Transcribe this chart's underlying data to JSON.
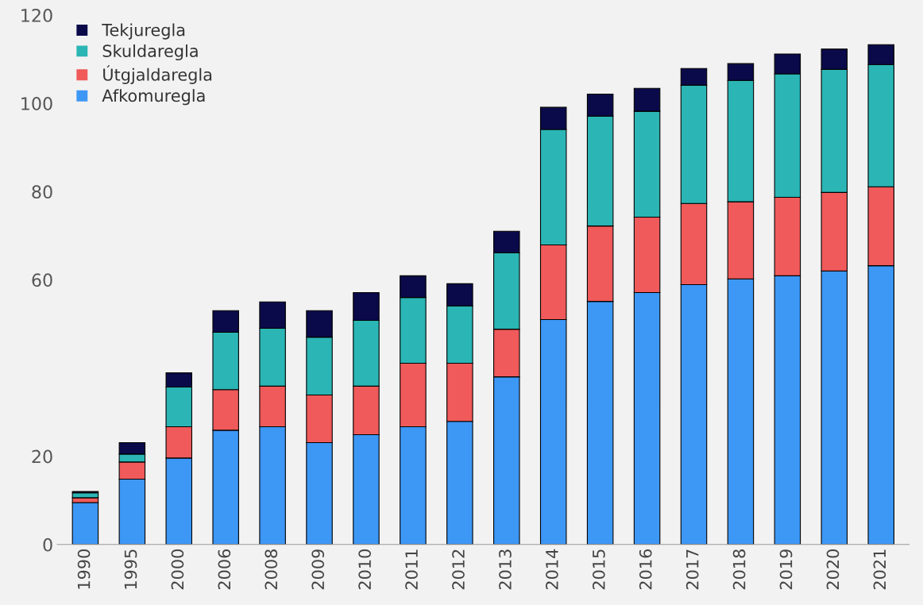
{
  "chart_data": {
    "type": "bar",
    "stacked": true,
    "legend": "top left",
    "grid": false,
    "categories": [
      "1990",
      "1995",
      "2000",
      "2006",
      "2008",
      "2009",
      "2010",
      "2011",
      "2012",
      "2013",
      "2014",
      "2015",
      "2016",
      "2017",
      "2018",
      "2019",
      "2020",
      "2021"
    ],
    "ylim": [
      0,
      120
    ],
    "yticks": [
      0,
      20,
      60,
      80,
      100,
      120
    ],
    "series": [
      {
        "name": "Afkomuregla",
        "color": "#3d97f5",
        "values": [
          9.5,
          14.8,
          19.6,
          25.9,
          26.7,
          23.1,
          24.9,
          26.7,
          27.9,
          38.0,
          51.0,
          55.1,
          57.1,
          58.9,
          60.2,
          60.9,
          62.0,
          63.2
        ]
      },
      {
        "name": "Útgjaldaregla",
        "color": "#f05a5a",
        "values": [
          1.1,
          3.9,
          7.1,
          9.2,
          9.2,
          10.8,
          11.0,
          14.4,
          13.2,
          10.8,
          16.9,
          17.1,
          17.1,
          18.4,
          17.5,
          17.8,
          17.8,
          17.9
        ]
      },
      {
        "name": "Skuldaregla",
        "color": "#2bb5b5",
        "values": [
          1.1,
          1.8,
          9.0,
          13.0,
          13.1,
          13.1,
          14.9,
          14.9,
          13.0,
          17.3,
          26.2,
          24.9,
          24.0,
          26.8,
          27.5,
          28.0,
          27.9,
          27.7
        ]
      },
      {
        "name": "Tekjuregla",
        "color": "#0a0a4a",
        "values": [
          0.3,
          2.6,
          3.2,
          4.9,
          6.0,
          6.0,
          6.3,
          4.9,
          5.0,
          4.9,
          5.0,
          5.0,
          5.2,
          3.8,
          3.8,
          4.5,
          4.6,
          4.5
        ]
      }
    ]
  }
}
